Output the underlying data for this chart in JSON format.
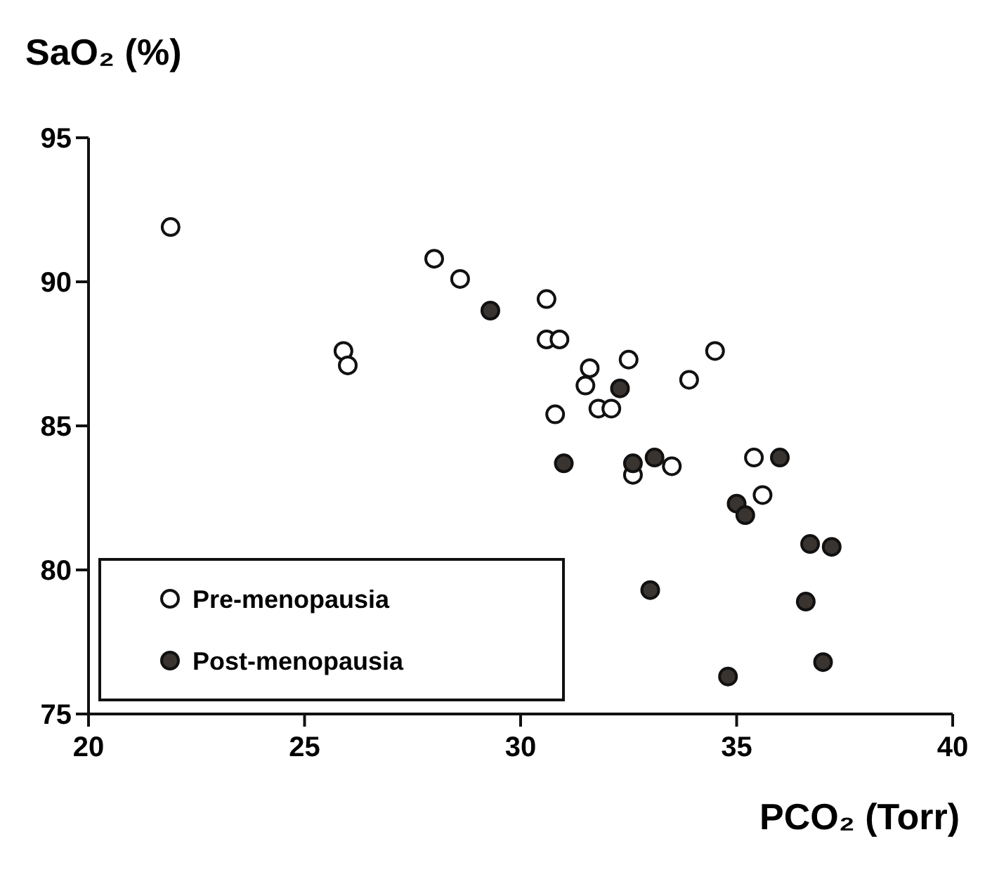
{
  "chart_data": {
    "type": "scatter",
    "ylabel": "SaO₂ (%)",
    "xlabel": "PCO₂ (Torr)",
    "xlim": [
      20,
      40
    ],
    "xticks": [
      20,
      25,
      30,
      35,
      40
    ],
    "ylim": [
      75,
      95
    ],
    "yticks": [
      75,
      80,
      85,
      90,
      95
    ],
    "grid": false,
    "legend": "bottom left",
    "marker": "circle",
    "series": [
      {
        "name": "Pre-menopausia",
        "color": "#ffffff",
        "x": [
          21.9,
          28.0,
          28.6,
          25.9,
          26.0,
          30.6,
          30.6,
          30.9,
          32.5,
          34.5,
          31.6,
          31.5,
          33.9,
          30.8,
          31.8,
          32.1,
          32.6,
          33.5,
          35.4,
          35.6
        ],
        "values": [
          91.9,
          90.8,
          90.1,
          87.6,
          87.1,
          89.4,
          88.0,
          88.0,
          87.3,
          87.6,
          87.0,
          86.4,
          86.6,
          85.4,
          85.6,
          85.6,
          83.3,
          83.6,
          83.9,
          82.6
        ]
      },
      {
        "name": "Post-menopausia",
        "color": "#3a3430",
        "x": [
          29.3,
          32.3,
          31.0,
          32.6,
          33.1,
          36.0,
          35.0,
          35.2,
          36.7,
          37.2,
          33.0,
          36.6,
          37.0,
          34.8
        ],
        "values": [
          89.0,
          86.3,
          83.7,
          83.7,
          83.9,
          83.9,
          82.3,
          81.9,
          80.9,
          80.8,
          79.3,
          78.9,
          76.8,
          76.3
        ]
      }
    ]
  }
}
